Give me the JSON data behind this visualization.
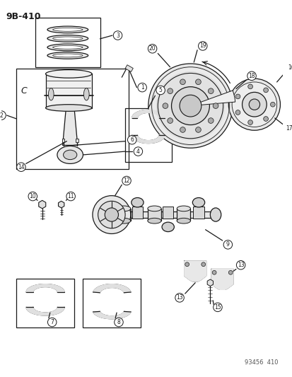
{
  "title": "9B−410",
  "footer": "93456  410",
  "bg_color": "#ffffff",
  "lc": "#1a1a1a",
  "figsize": [
    4.14,
    5.33
  ],
  "dpi": 100,
  "title_fs": 9,
  "footer_fs": 6,
  "label_fs": 6,
  "label_r": 6.5
}
